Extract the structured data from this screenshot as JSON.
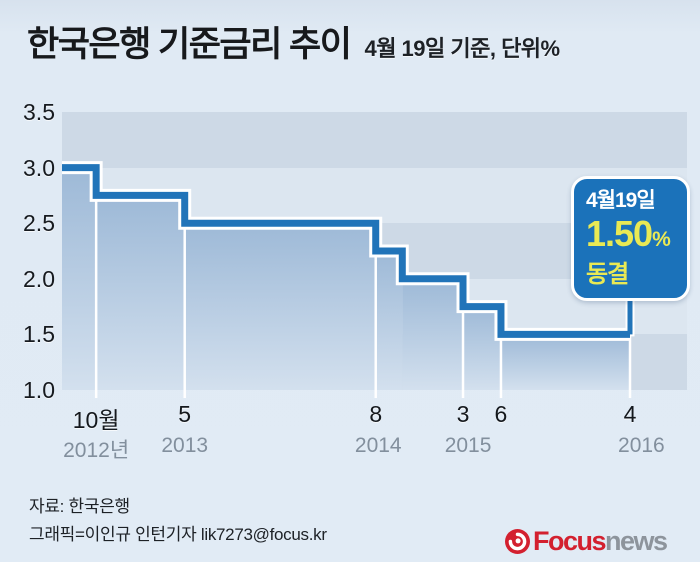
{
  "header": {
    "title": "한국은행 기준금리 추이",
    "subtitle": "4월 19일 기준, 단위%"
  },
  "chart_data": {
    "type": "step_area",
    "title": "한국은행 기준금리 추이",
    "subtitle": "4월 19일 기준, 단위%",
    "unit": "%",
    "t_unit": "months since plot start (2012-07)",
    "y_min": 1.0,
    "y_max": 3.5,
    "y_ticks": [
      "3.5",
      "3.0",
      "2.5",
      "2.0",
      "1.5",
      "1.0"
    ],
    "grid": "horizontal-bands",
    "steps": [
      {
        "t": 0,
        "value": 3.0,
        "label": ""
      },
      {
        "t": 2.7,
        "value": 2.75,
        "label": "10월"
      },
      {
        "t": 9.7,
        "value": 2.5,
        "label": "5"
      },
      {
        "t": 24.8,
        "value": 2.25,
        "label": "8"
      },
      {
        "t": 26.9,
        "value": 2.0,
        "label": ""
      },
      {
        "t": 31.7,
        "value": 1.75,
        "label": "3"
      },
      {
        "t": 34.7,
        "value": 1.5,
        "label": "6"
      }
    ],
    "end": {
      "t": 44.9,
      "label": "4"
    },
    "year_labels": [
      {
        "label": "2012년",
        "t": 2.7
      },
      {
        "label": "2013",
        "t": 9.7
      },
      {
        "label": "2014",
        "t": 25.0
      },
      {
        "label": "2015",
        "t": 32.1
      },
      {
        "label": "2016",
        "t": 45.8
      }
    ],
    "callout": {
      "date": "4월19일",
      "rate": "1.50",
      "percent_sign": "%",
      "status": "동결"
    }
  },
  "colors": {
    "background": "#e0eaf4",
    "line_blue": "#2174b9",
    "line_casing": "#ffffff",
    "area_top": "#9db9d7",
    "area_bottom": "#d3e0ee",
    "band_dark": "#cdd9e6",
    "band_light": "#dce6f0",
    "callout_bg": "#1b72ba",
    "callout_yellow": "#e9e954",
    "callout_white": "#ffffff",
    "year_label_gray": "#828f9d",
    "logo_red": "#d3202f",
    "logo_gray": "#8d949c"
  },
  "icons": {
    "logo_swirl": "focus-swirl-icon"
  },
  "footer": {
    "source": "자료: 한국은행",
    "credit": "그래픽=이인규 인턴기자 lik7273@focus.kr",
    "logo_focus": "Focus",
    "logo_news": "news"
  }
}
